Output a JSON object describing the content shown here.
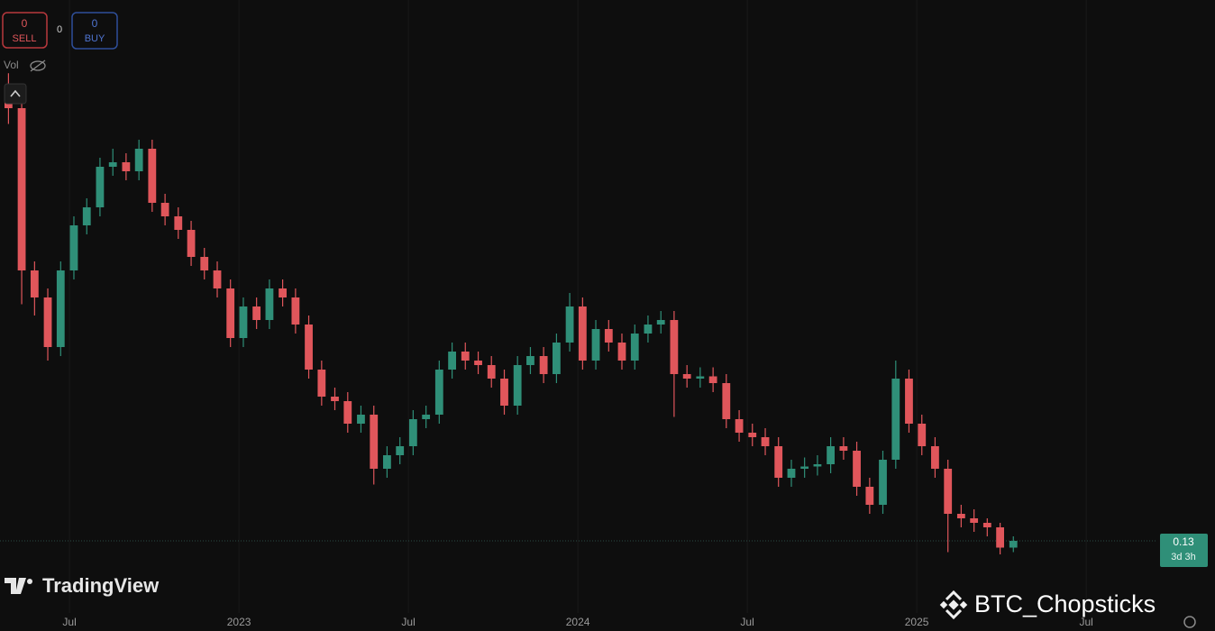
{
  "chart_data": {
    "type": "candlestick",
    "x": [
      2022.32,
      2022.359,
      2022.397,
      2022.436,
      2022.474,
      2022.513,
      2022.551,
      2022.59,
      2022.628,
      2022.667,
      2022.705,
      2022.744,
      2022.782,
      2022.821,
      2022.859,
      2022.898,
      2022.936,
      2022.975,
      2023.013,
      2023.052,
      2023.09,
      2023.129,
      2023.167,
      2023.206,
      2023.244,
      2023.283,
      2023.321,
      2023.36,
      2023.398,
      2023.437,
      2023.475,
      2023.514,
      2023.552,
      2023.591,
      2023.629,
      2023.668,
      2023.706,
      2023.745,
      2023.783,
      2023.822,
      2023.86,
      2023.899,
      2023.937,
      2023.976,
      2024.014,
      2024.053,
      2024.091,
      2024.13,
      2024.168,
      2024.207,
      2024.245,
      2024.284,
      2024.322,
      2024.361,
      2024.399,
      2024.438,
      2024.476,
      2024.515,
      2024.553,
      2024.592,
      2024.63,
      2024.669,
      2024.707,
      2024.746,
      2024.784,
      2024.823,
      2024.861,
      2024.9,
      2024.938,
      2024.977,
      2025.015,
      2025.054,
      2025.092,
      2025.131,
      2025.169,
      2025.208,
      2025.246,
      2025.285
    ],
    "open": [
      0.53,
      0.514,
      0.37,
      0.346,
      0.302,
      0.37,
      0.41,
      0.426,
      0.462,
      0.466,
      0.458,
      0.478,
      0.43,
      0.418,
      0.406,
      0.382,
      0.37,
      0.354,
      0.31,
      0.338,
      0.326,
      0.354,
      0.346,
      0.322,
      0.282,
      0.258,
      0.254,
      0.234,
      0.242,
      0.194,
      0.206,
      0.214,
      0.238,
      0.242,
      0.282,
      0.298,
      0.29,
      0.286,
      0.274,
      0.25,
      0.286,
      0.294,
      0.278,
      0.306,
      0.338,
      0.29,
      0.318,
      0.306,
      0.29,
      0.314,
      0.322,
      0.326,
      0.278,
      0.274,
      0.276,
      0.27,
      0.238,
      0.226,
      0.222,
      0.214,
      0.186,
      0.194,
      0.196,
      0.198,
      0.214,
      0.21,
      0.178,
      0.162,
      0.202,
      0.274,
      0.234,
      0.214,
      0.194,
      0.154,
      0.15,
      0.146,
      0.142,
      0.124
    ],
    "high": [
      0.545,
      0.522,
      0.378,
      0.354,
      0.378,
      0.418,
      0.434,
      0.47,
      0.478,
      0.474,
      0.486,
      0.486,
      0.438,
      0.426,
      0.414,
      0.39,
      0.378,
      0.362,
      0.346,
      0.346,
      0.362,
      0.362,
      0.354,
      0.33,
      0.29,
      0.266,
      0.262,
      0.25,
      0.25,
      0.214,
      0.222,
      0.246,
      0.25,
      0.29,
      0.306,
      0.306,
      0.298,
      0.294,
      0.282,
      0.294,
      0.302,
      0.302,
      0.314,
      0.35,
      0.346,
      0.326,
      0.326,
      0.314,
      0.322,
      0.33,
      0.334,
      0.334,
      0.286,
      0.284,
      0.284,
      0.278,
      0.246,
      0.234,
      0.23,
      0.222,
      0.202,
      0.204,
      0.206,
      0.222,
      0.222,
      0.218,
      0.186,
      0.21,
      0.29,
      0.282,
      0.242,
      0.222,
      0.202,
      0.162,
      0.158,
      0.15,
      0.146,
      0.134
    ],
    "low": [
      0.5,
      0.34,
      0.33,
      0.29,
      0.294,
      0.362,
      0.402,
      0.418,
      0.454,
      0.45,
      0.45,
      0.422,
      0.41,
      0.398,
      0.374,
      0.362,
      0.346,
      0.302,
      0.302,
      0.318,
      0.318,
      0.338,
      0.314,
      0.274,
      0.25,
      0.246,
      0.226,
      0.226,
      0.18,
      0.186,
      0.198,
      0.206,
      0.23,
      0.234,
      0.274,
      0.282,
      0.278,
      0.266,
      0.242,
      0.242,
      0.278,
      0.27,
      0.27,
      0.298,
      0.282,
      0.282,
      0.298,
      0.282,
      0.282,
      0.306,
      0.314,
      0.24,
      0.266,
      0.266,
      0.262,
      0.23,
      0.218,
      0.214,
      0.206,
      0.178,
      0.178,
      0.186,
      0.188,
      0.19,
      0.202,
      0.17,
      0.154,
      0.154,
      0.194,
      0.226,
      0.206,
      0.186,
      0.12,
      0.142,
      0.138,
      0.134,
      0.118,
      0.12
    ],
    "close": [
      0.514,
      0.37,
      0.346,
      0.302,
      0.37,
      0.41,
      0.426,
      0.462,
      0.466,
      0.458,
      0.478,
      0.43,
      0.418,
      0.406,
      0.382,
      0.37,
      0.354,
      0.31,
      0.338,
      0.326,
      0.354,
      0.346,
      0.322,
      0.282,
      0.258,
      0.254,
      0.234,
      0.242,
      0.194,
      0.206,
      0.214,
      0.238,
      0.242,
      0.282,
      0.298,
      0.29,
      0.286,
      0.274,
      0.25,
      0.286,
      0.294,
      0.278,
      0.306,
      0.338,
      0.29,
      0.318,
      0.306,
      0.29,
      0.314,
      0.322,
      0.326,
      0.278,
      0.274,
      0.276,
      0.27,
      0.238,
      0.226,
      0.222,
      0.214,
      0.186,
      0.194,
      0.196,
      0.198,
      0.214,
      0.21,
      0.178,
      0.162,
      0.202,
      0.274,
      0.234,
      0.214,
      0.194,
      0.154,
      0.15,
      0.146,
      0.142,
      0.124,
      0.13
    ],
    "up_color": "#2f8f78",
    "down_color": "#e0565b",
    "xlim": [
      2022.295,
      2025.88
    ],
    "xticks": [
      {
        "value": 2022.5,
        "label": "Jul"
      },
      2023,
      {
        "value": 2023.5,
        "label": "Jul"
      },
      2024,
      {
        "value": 2024.5,
        "label": "Jul"
      },
      2025,
      {
        "value": 2025.5,
        "label": "Jul"
      }
    ],
    "ylim": [
      0.05,
      0.61
    ],
    "grid": true,
    "price_label": 0.13,
    "countdown": "3d 3h"
  },
  "ui": {
    "sell_count": "0",
    "sell": "SELL",
    "spread": "0",
    "buy_count": "0",
    "buy": "BUY",
    "volume": "Vol",
    "brand": "TradingView",
    "watermark": "BTC_Chopsticks"
  }
}
